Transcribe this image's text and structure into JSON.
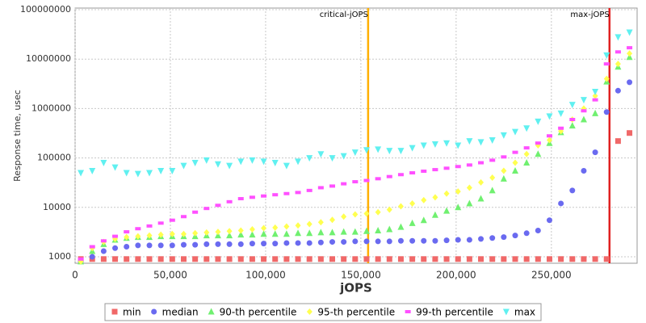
{
  "chart_data": {
    "type": "scatter",
    "x_label": "jOPS",
    "y_label": "Response time, usec",
    "log_y": true,
    "grid": true,
    "xlim": [
      0,
      295000
    ],
    "ylim": [
      740,
      108000000
    ],
    "xticks": [
      0,
      {
        "value": 50000,
        "label": "50,000"
      },
      {
        "value": 100000,
        "label": "100,000"
      },
      {
        "value": 150000,
        "label": "150,000"
      },
      {
        "value": 200000,
        "label": "200,000"
      },
      {
        "value": 250000,
        "label": "250,000"
      }
    ],
    "yticks": [
      1000,
      10000,
      100000,
      1000000,
      10000000,
      100000000
    ],
    "annotations": [
      {
        "label": "critical-jOPS",
        "x": 153800,
        "color": "#ffb000"
      },
      {
        "label": "max-jOPS",
        "x": 280500,
        "color": "#e02020"
      }
    ],
    "x": [
      3000,
      9000,
      15000,
      21000,
      27000,
      33000,
      39000,
      45000,
      51000,
      57000,
      63000,
      69000,
      75000,
      81000,
      87000,
      93000,
      99000,
      105000,
      111000,
      117000,
      123000,
      129000,
      135000,
      141000,
      147000,
      153000,
      159000,
      165000,
      171000,
      177000,
      183000,
      189000,
      195000,
      201000,
      207000,
      213000,
      219000,
      225000,
      231000,
      237000,
      243000,
      249000,
      255000,
      261000,
      267000,
      273000,
      279000,
      285000,
      291000
    ],
    "series": [
      {
        "name": "min",
        "color": "#f06868",
        "marker": "square",
        "values": [
          900,
          900,
          900,
          900,
          900,
          900,
          900,
          900,
          900,
          900,
          900,
          900,
          900,
          900,
          900,
          900,
          900,
          900,
          900,
          900,
          900,
          900,
          900,
          900,
          900,
          900,
          900,
          900,
          900,
          900,
          900,
          900,
          900,
          900,
          900,
          900,
          900,
          900,
          900,
          900,
          900,
          900,
          900,
          900,
          900,
          900,
          900,
          220000,
          320000
        ]
      },
      {
        "name": "median",
        "color": "#6a6af0",
        "marker": "circle",
        "values": [
          800,
          1000,
          1300,
          1500,
          1600,
          1700,
          1700,
          1700,
          1700,
          1750,
          1750,
          1800,
          1800,
          1800,
          1800,
          1850,
          1850,
          1850,
          1900,
          1900,
          1900,
          1950,
          2000,
          2000,
          2050,
          2050,
          2050,
          2050,
          2100,
          2100,
          2100,
          2100,
          2150,
          2200,
          2200,
          2300,
          2400,
          2500,
          2700,
          3000,
          3400,
          5500,
          12000,
          22000,
          55000,
          130000,
          850000,
          2300000,
          3400000
        ]
      },
      {
        "name": "90-th percentile",
        "color": "#70f070",
        "marker": "triangle-up",
        "values": [
          800,
          1300,
          1800,
          2200,
          2400,
          2500,
          2500,
          2600,
          2600,
          2600,
          2600,
          2700,
          2700,
          2700,
          2800,
          2800,
          2900,
          2900,
          2900,
          3000,
          3000,
          3100,
          3100,
          3200,
          3200,
          3300,
          3400,
          3600,
          4000,
          4800,
          5500,
          7000,
          8500,
          10000,
          12000,
          15000,
          22000,
          38000,
          55000,
          80000,
          120000,
          200000,
          330000,
          450000,
          600000,
          800000,
          3500000,
          7000000,
          11000000
        ]
      },
      {
        "name": "95-th percentile",
        "color": "#ffff50",
        "marker": "diamond",
        "values": [
          800,
          1500,
          2000,
          2300,
          2500,
          2600,
          2700,
          2800,
          2900,
          2900,
          3000,
          3100,
          3200,
          3300,
          3400,
          3600,
          3800,
          3900,
          4100,
          4300,
          4600,
          5000,
          5600,
          6500,
          7200,
          7500,
          8000,
          9000,
          10500,
          12000,
          14000,
          16000,
          19000,
          21000,
          25000,
          32000,
          40000,
          55000,
          80000,
          120000,
          180000,
          230000,
          350000,
          600000,
          1000000,
          1800000,
          4000000,
          8000000,
          13000000
        ]
      },
      {
        "name": "99-th percentile",
        "color": "#ff50ff",
        "marker": "bar",
        "values": [
          900,
          1600,
          2100,
          2600,
          3200,
          3700,
          4200,
          4800,
          5500,
          6500,
          8000,
          9500,
          11000,
          13000,
          15000,
          16000,
          17000,
          18000,
          19000,
          20000,
          22000,
          25000,
          27000,
          30000,
          33000,
          35000,
          38000,
          42000,
          46000,
          50000,
          54000,
          58000,
          62000,
          67000,
          72000,
          80000,
          90000,
          105000,
          130000,
          160000,
          200000,
          280000,
          400000,
          600000,
          900000,
          1500000,
          8000000,
          14000000,
          17000000
        ]
      },
      {
        "name": "max",
        "color": "#60f0f0",
        "marker": "triangle-down",
        "values": [
          50000,
          55000,
          80000,
          65000,
          50000,
          48000,
          50000,
          55000,
          55000,
          70000,
          80000,
          90000,
          75000,
          70000,
          85000,
          90000,
          85000,
          80000,
          70000,
          85000,
          100000,
          120000,
          100000,
          110000,
          130000,
          145000,
          150000,
          140000,
          140000,
          160000,
          180000,
          190000,
          200000,
          180000,
          220000,
          210000,
          230000,
          290000,
          340000,
          400000,
          550000,
          700000,
          800000,
          1200000,
          1500000,
          2200000,
          12000000,
          28000000,
          35000000
        ]
      }
    ]
  }
}
